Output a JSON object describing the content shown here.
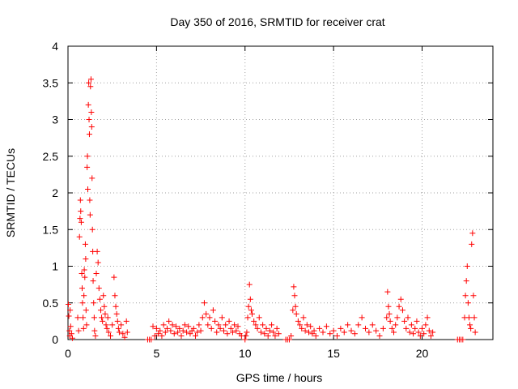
{
  "chart_data": {
    "type": "scatter",
    "title": "Day 350 of 2016, SRMTID for receiver crat",
    "xlabel": "GPS time / hours",
    "ylabel": "SRMTID / TECUs",
    "xlim": [
      0,
      24
    ],
    "ylim": [
      0,
      4
    ],
    "xticks": [
      0,
      5,
      10,
      15,
      20
    ],
    "xtick_labels": [
      "0",
      "5",
      "10",
      "15",
      "20"
    ],
    "yticks": [
      0,
      0.5,
      1,
      1.5,
      2,
      2.5,
      3,
      3.5,
      4
    ],
    "ytick_labels": [
      "0",
      "0.5",
      "1",
      "1.5",
      "2",
      "2.5",
      "3",
      "3.5",
      "4"
    ],
    "grid": true,
    "marker": "+",
    "color": "#ff0000",
    "series": [
      {
        "name": "SRMTID",
        "points": [
          [
            0.02,
            0.48
          ],
          [
            0.05,
            0.32
          ],
          [
            0.08,
            0.12
          ],
          [
            0.1,
            0.05
          ],
          [
            0.12,
            0.4
          ],
          [
            0.15,
            0.18
          ],
          [
            0.2,
            0.08
          ],
          [
            0.25,
            0.02
          ],
          [
            0.55,
            0.3
          ],
          [
            0.6,
            0.12
          ],
          [
            0.65,
            1.4
          ],
          [
            0.68,
            1.65
          ],
          [
            0.7,
            1.9
          ],
          [
            0.72,
            1.75
          ],
          [
            0.75,
            1.6
          ],
          [
            0.78,
            0.9
          ],
          [
            0.8,
            0.7
          ],
          [
            0.82,
            0.5
          ],
          [
            0.85,
            0.3
          ],
          [
            0.88,
            0.15
          ],
          [
            0.9,
            0.6
          ],
          [
            0.92,
            0.95
          ],
          [
            0.95,
            0.85
          ],
          [
            0.98,
            1.3
          ],
          [
            1.0,
            1.1
          ],
          [
            1.02,
            0.4
          ],
          [
            1.05,
            0.2
          ],
          [
            1.08,
            2.35
          ],
          [
            1.1,
            2.5
          ],
          [
            1.12,
            2.05
          ],
          [
            1.15,
            3.2
          ],
          [
            1.17,
            3.5
          ],
          [
            1.19,
            3.0
          ],
          [
            1.21,
            2.8
          ],
          [
            1.23,
            1.9
          ],
          [
            1.25,
            1.7
          ],
          [
            1.27,
            3.45
          ],
          [
            1.3,
            3.55
          ],
          [
            1.32,
            3.1
          ],
          [
            1.34,
            2.9
          ],
          [
            1.36,
            2.2
          ],
          [
            1.38,
            1.5
          ],
          [
            1.4,
            1.2
          ],
          [
            1.42,
            0.8
          ],
          [
            1.45,
            0.5
          ],
          [
            1.48,
            0.3
          ],
          [
            1.5,
            0.12
          ],
          [
            1.55,
            0.05
          ],
          [
            1.6,
            0.9
          ],
          [
            1.65,
            1.2
          ],
          [
            1.7,
            1.05
          ],
          [
            1.75,
            0.7
          ],
          [
            1.8,
            0.55
          ],
          [
            1.85,
            0.4
          ],
          [
            1.9,
            0.3
          ],
          [
            1.95,
            0.25
          ],
          [
            2.0,
            0.6
          ],
          [
            2.05,
            0.45
          ],
          [
            2.1,
            0.35
          ],
          [
            2.15,
            0.2
          ],
          [
            2.2,
            0.15
          ],
          [
            2.25,
            0.3
          ],
          [
            2.3,
            0.1
          ],
          [
            2.4,
            0.05
          ],
          [
            2.5,
            0.2
          ],
          [
            2.6,
            0.85
          ],
          [
            2.65,
            0.6
          ],
          [
            2.7,
            0.45
          ],
          [
            2.75,
            0.35
          ],
          [
            2.8,
            0.25
          ],
          [
            2.85,
            0.15
          ],
          [
            2.9,
            0.1
          ],
          [
            3.0,
            0.2
          ],
          [
            3.1,
            0.08
          ],
          [
            3.2,
            0.03
          ],
          [
            3.3,
            0.25
          ],
          [
            3.35,
            0.1
          ],
          [
            4.5,
            0.0
          ],
          [
            4.6,
            0.0
          ],
          [
            4.7,
            0.0
          ],
          [
            4.8,
            0.18
          ],
          [
            4.9,
            0.05
          ],
          [
            5.0,
            0.15
          ],
          [
            5.1,
            0.08
          ],
          [
            5.2,
            0.12
          ],
          [
            5.3,
            0.05
          ],
          [
            5.4,
            0.2
          ],
          [
            5.5,
            0.1
          ],
          [
            5.6,
            0.15
          ],
          [
            5.7,
            0.25
          ],
          [
            5.8,
            0.12
          ],
          [
            5.9,
            0.2
          ],
          [
            6.0,
            0.08
          ],
          [
            6.1,
            0.18
          ],
          [
            6.2,
            0.1
          ],
          [
            6.3,
            0.15
          ],
          [
            6.4,
            0.05
          ],
          [
            6.5,
            0.12
          ],
          [
            6.6,
            0.2
          ],
          [
            6.7,
            0.1
          ],
          [
            6.8,
            0.18
          ],
          [
            6.9,
            0.08
          ],
          [
            7.0,
            0.12
          ],
          [
            7.1,
            0.15
          ],
          [
            7.2,
            0.05
          ],
          [
            7.3,
            0.1
          ],
          [
            7.4,
            0.2
          ],
          [
            7.5,
            0.12
          ],
          [
            7.6,
            0.3
          ],
          [
            7.7,
            0.5
          ],
          [
            7.8,
            0.35
          ],
          [
            7.9,
            0.2
          ],
          [
            8.0,
            0.3
          ],
          [
            8.1,
            0.15
          ],
          [
            8.2,
            0.4
          ],
          [
            8.3,
            0.25
          ],
          [
            8.4,
            0.1
          ],
          [
            8.5,
            0.2
          ],
          [
            8.6,
            0.15
          ],
          [
            8.7,
            0.3
          ],
          [
            8.8,
            0.12
          ],
          [
            8.9,
            0.2
          ],
          [
            9.0,
            0.08
          ],
          [
            9.1,
            0.25
          ],
          [
            9.2,
            0.15
          ],
          [
            9.3,
            0.1
          ],
          [
            9.4,
            0.2
          ],
          [
            9.5,
            0.12
          ],
          [
            9.6,
            0.18
          ],
          [
            9.7,
            0.08
          ],
          [
            9.8,
            0.05
          ],
          [
            10.0,
            0.0
          ],
          [
            10.05,
            0.05
          ],
          [
            10.1,
            0.1
          ],
          [
            10.15,
            0.3
          ],
          [
            10.2,
            0.45
          ],
          [
            10.25,
            0.75
          ],
          [
            10.3,
            0.55
          ],
          [
            10.35,
            0.4
          ],
          [
            10.4,
            0.35
          ],
          [
            10.5,
            0.25
          ],
          [
            10.6,
            0.2
          ],
          [
            10.7,
            0.15
          ],
          [
            10.8,
            0.3
          ],
          [
            10.9,
            0.1
          ],
          [
            11.0,
            0.2
          ],
          [
            11.1,
            0.08
          ],
          [
            11.2,
            0.15
          ],
          [
            11.3,
            0.05
          ],
          [
            11.4,
            0.12
          ],
          [
            11.5,
            0.2
          ],
          [
            11.6,
            0.1
          ],
          [
            11.7,
            0.05
          ],
          [
            11.8,
            0.15
          ],
          [
            11.9,
            0.08
          ],
          [
            12.3,
            0.0
          ],
          [
            12.4,
            0.0
          ],
          [
            12.5,
            0.0
          ],
          [
            12.6,
            0.05
          ],
          [
            12.7,
            0.4
          ],
          [
            12.75,
            0.72
          ],
          [
            12.8,
            0.6
          ],
          [
            12.85,
            0.45
          ],
          [
            12.9,
            0.35
          ],
          [
            13.0,
            0.25
          ],
          [
            13.1,
            0.2
          ],
          [
            13.2,
            0.15
          ],
          [
            13.3,
            0.3
          ],
          [
            13.4,
            0.12
          ],
          [
            13.5,
            0.2
          ],
          [
            13.6,
            0.1
          ],
          [
            13.7,
            0.18
          ],
          [
            13.8,
            0.08
          ],
          [
            13.9,
            0.12
          ],
          [
            14.0,
            0.05
          ],
          [
            14.2,
            0.15
          ],
          [
            14.4,
            0.1
          ],
          [
            14.6,
            0.18
          ],
          [
            14.8,
            0.08
          ],
          [
            15.0,
            0.12
          ],
          [
            15.2,
            0.05
          ],
          [
            15.4,
            0.15
          ],
          [
            15.6,
            0.1
          ],
          [
            15.8,
            0.2
          ],
          [
            16.0,
            0.12
          ],
          [
            16.2,
            0.08
          ],
          [
            16.4,
            0.2
          ],
          [
            16.6,
            0.3
          ],
          [
            16.8,
            0.15
          ],
          [
            17.0,
            0.1
          ],
          [
            17.2,
            0.2
          ],
          [
            17.4,
            0.12
          ],
          [
            17.6,
            0.05
          ],
          [
            17.8,
            0.15
          ],
          [
            18.0,
            0.3
          ],
          [
            18.05,
            0.65
          ],
          [
            18.1,
            0.45
          ],
          [
            18.15,
            0.35
          ],
          [
            18.2,
            0.25
          ],
          [
            18.3,
            0.15
          ],
          [
            18.4,
            0.1
          ],
          [
            18.5,
            0.2
          ],
          [
            18.6,
            0.3
          ],
          [
            18.7,
            0.45
          ],
          [
            18.8,
            0.55
          ],
          [
            18.9,
            0.4
          ],
          [
            19.0,
            0.25
          ],
          [
            19.1,
            0.15
          ],
          [
            19.2,
            0.3
          ],
          [
            19.3,
            0.1
          ],
          [
            19.4,
            0.2
          ],
          [
            19.5,
            0.08
          ],
          [
            19.6,
            0.15
          ],
          [
            19.7,
            0.25
          ],
          [
            19.8,
            0.1
          ],
          [
            19.9,
            0.05
          ],
          [
            20.0,
            0.15
          ],
          [
            20.1,
            0.08
          ],
          [
            20.2,
            0.2
          ],
          [
            20.3,
            0.3
          ],
          [
            20.4,
            0.12
          ],
          [
            20.5,
            0.05
          ],
          [
            20.6,
            0.1
          ],
          [
            22.0,
            0.0
          ],
          [
            22.1,
            0.0
          ],
          [
            22.2,
            0.0
          ],
          [
            22.3,
            0.0
          ],
          [
            22.4,
            0.3
          ],
          [
            22.45,
            0.6
          ],
          [
            22.5,
            0.8
          ],
          [
            22.55,
            1.0
          ],
          [
            22.6,
            0.5
          ],
          [
            22.65,
            0.3
          ],
          [
            22.7,
            0.2
          ],
          [
            22.75,
            0.15
          ],
          [
            22.8,
            1.3
          ],
          [
            22.85,
            1.45
          ],
          [
            22.9,
            0.6
          ],
          [
            22.95,
            0.3
          ],
          [
            23.0,
            0.1
          ]
        ]
      }
    ]
  }
}
